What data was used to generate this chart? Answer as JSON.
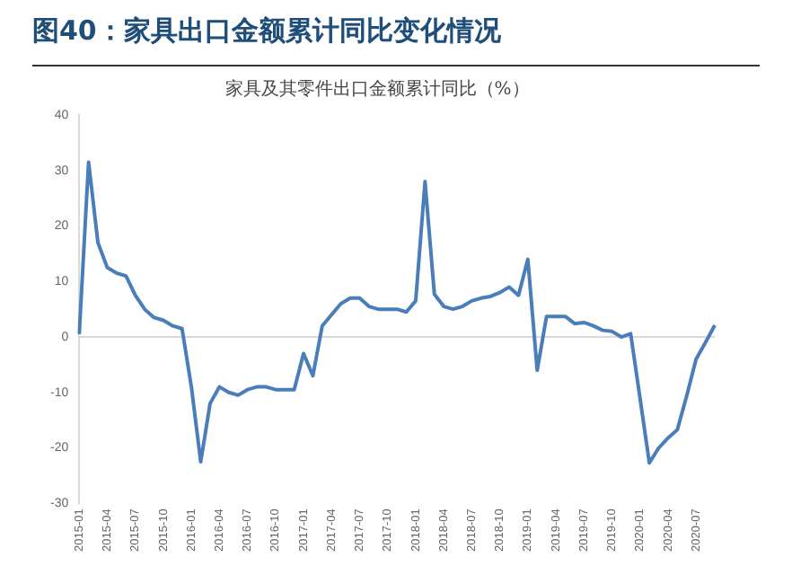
{
  "chart_data": {
    "type": "line",
    "title": "图40：家具出口金额累计同比变化情况",
    "subtitle": "家具及其零件出口金额累计同比（%）",
    "categories": [
      "2015-01",
      null,
      null,
      "2015-04",
      null,
      null,
      "2015-07",
      null,
      null,
      "2015-10",
      null,
      null,
      "2016-01",
      null,
      null,
      "2016-04",
      null,
      null,
      "2016-07",
      null,
      null,
      "2016-10",
      null,
      null,
      "2017-01",
      null,
      null,
      "2017-04",
      null,
      null,
      "2017-07",
      null,
      null,
      "2017-10",
      null,
      null,
      "2018-01",
      null,
      null,
      "2018-04",
      null,
      null,
      "2018-07",
      null,
      null,
      "2018-10",
      null,
      null,
      "2019-01",
      null,
      null,
      "2019-04",
      null,
      null,
      "2019-07",
      null,
      null,
      "2019-10",
      null,
      null,
      "2020-01",
      null,
      null,
      "2020-04",
      null,
      null,
      "2020-07",
      null,
      null
    ],
    "series": [
      {
        "color": "#4a7ebb",
        "values": [
          0.5,
          31.5,
          17,
          12.5,
          11.5,
          11,
          7.5,
          5,
          3.5,
          3,
          2,
          1.5,
          -9,
          -22.5,
          -12,
          -9,
          -10,
          -10.5,
          -9.5,
          -9,
          -9,
          -9.5,
          -9.5,
          -9.5,
          -3,
          -7,
          2,
          4,
          6,
          7,
          7,
          5.5,
          5,
          5,
          5,
          4.5,
          6.5,
          28,
          7.7,
          5.5,
          5,
          5.5,
          6.5,
          7,
          7.3,
          8,
          9,
          7.5,
          14,
          -6,
          3.7,
          3.7,
          3.7,
          2.4,
          2.6,
          2,
          1.2,
          1,
          0,
          0.6,
          -11,
          -22.7,
          -20,
          -18.2,
          -16.7,
          -10.6,
          -4,
          -1,
          2.1
        ]
      }
    ],
    "ylim": [
      -30,
      40
    ],
    "yticks": [
      -30,
      -20,
      -10,
      0,
      10,
      20,
      30,
      40
    ],
    "ref_lines": [
      {
        "axis": "y",
        "value": 0,
        "color": "#d9d9d9"
      }
    ],
    "grid": false,
    "legend": false,
    "marker": "none",
    "line_style": "solid"
  }
}
